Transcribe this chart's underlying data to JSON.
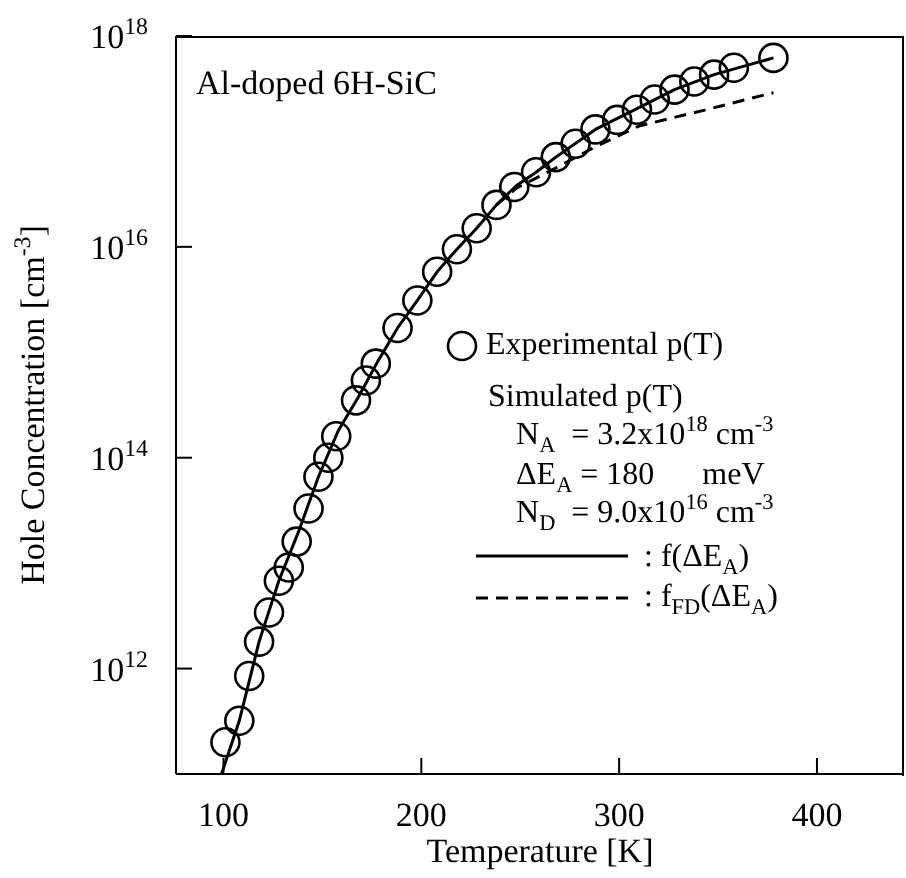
{
  "chart_data": {
    "type": "scatter",
    "xlabel": "Temperature  [K]",
    "ylabel": "Hole Concentration  [cm$^{-3}$]",
    "xlim": [
      76,
      444
    ],
    "xticks": [
      100,
      200,
      300,
      400
    ],
    "ylim": [
      100000000000.0,
      1e+18
    ],
    "yticks": [
      {
        "value": 1000000000000.0,
        "label": "10$^{12}$"
      },
      {
        "value": 100000000000000.0,
        "label": "10$^{14}$"
      },
      {
        "value": 1e+16,
        "label": "10$^{16}$"
      },
      {
        "value": 1e+18,
        "label": "10$^{18}$"
      }
    ],
    "log": "y",
    "grid": false,
    "legend": "right",
    "annotations": [
      "Al-doped 6H-SiC",
      "Simulated p(T)",
      "N$_{A}$  = 3.2x10$^{18}$ cm$^{-3}$",
      "ΔE$_{A}$ = 180      meV",
      "N$_{D}$  = 9.0x10$^{16}$ cm$^{-3}$"
    ],
    "series": [
      {
        "name": "Experimental p(T)",
        "type": "scatter",
        "marker": "circle",
        "color": "#000000",
        "x": [
          101,
          108,
          113,
          118,
          123,
          128,
          133,
          137,
          143,
          148,
          153,
          157,
          167,
          172,
          177,
          188,
          198,
          208,
          218,
          228,
          238,
          247,
          258,
          268,
          278,
          288,
          299,
          309,
          318,
          328,
          338,
          348,
          358,
          378
        ],
        "values": [
          200000000000.0,
          320000000000.0,
          850000000000.0,
          1800000000000.0,
          3400000000000.0,
          6800000000000.0,
          9100000000000.0,
          16000000000000.0,
          33000000000000.0,
          66000000000000.0,
          100000000000000.0,
          160000000000000.0,
          350000000000000.0,
          540000000000000.0,
          780000000000000.0,
          1700000000000000.0,
          3100000000000000.0,
          5800000000000000.0,
          9500000000000000.0,
          1.5e+16,
          2.5e+16,
          3.7e+16,
          5.1e+16,
          7.1e+16,
          9.5e+16,
          1.3e+17,
          1.6e+17,
          2e+17,
          2.5e+17,
          3.1e+17,
          3.7e+17,
          4.3e+17,
          5e+17,
          6.2e+17
        ]
      },
      {
        "name": ": f(ΔE$_{A}$)",
        "type": "line",
        "line_style": "solid",
        "marker": "none",
        "color": "#000000",
        "x": [
          99,
          108,
          118,
          128,
          138,
          148,
          158,
          168,
          178,
          188,
          198,
          208,
          218,
          228,
          238,
          248,
          258,
          268,
          288,
          308,
          328,
          348,
          378
        ],
        "values": [
          100000000000.0,
          320000000000.0,
          1800000000000.0,
          6800000000000.0,
          20000000000000.0,
          66000000000000.0,
          180000000000000.0,
          370000000000000.0,
          820000000000000.0,
          1700000000000000.0,
          3100000000000000.0,
          5800000000000000.0,
          9500000000000000.0,
          1.5e+16,
          2.5e+16,
          3.8e+16,
          5.1e+16,
          7.1e+16,
          1.3e+17,
          2e+17,
          3.1e+17,
          4.3e+17,
          6.2e+17
        ]
      },
      {
        "name": ": f$_{FD}$(ΔE$_{A}$)",
        "type": "line",
        "line_style": "dashed",
        "marker": "none",
        "color": "#000000",
        "x": [
          238,
          248,
          268,
          288,
          310,
          344,
          378
        ],
        "values": [
          2.5e+16,
          3.6e+16,
          5.6e+16,
          8.9e+16,
          1.4e+17,
          2e+17,
          2.9e+17
        ]
      }
    ]
  }
}
